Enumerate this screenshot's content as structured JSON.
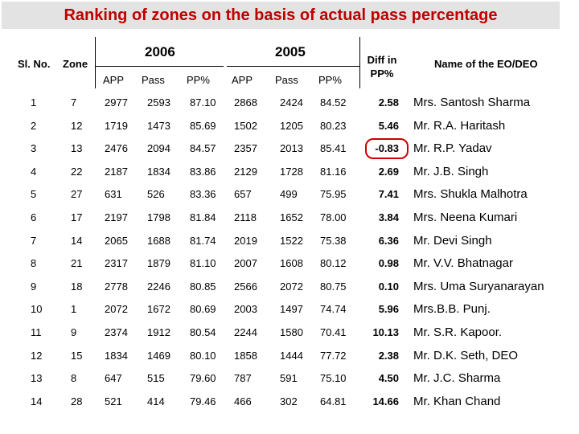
{
  "title": "Ranking of zones on the basis of actual pass percentage",
  "headers": {
    "sl_no": "Sl. No.",
    "zone": "Zone",
    "year_2006": "2006",
    "year_2005": "2005",
    "app": "APP",
    "pass": "Pass",
    "pp": "PP%",
    "diff": "Diff in PP%",
    "name": "Name of the EO/DEO"
  },
  "rows": [
    {
      "sl": "1",
      "zone": "7",
      "app06": "2977",
      "pass06": "2593",
      "pp06": "87.10",
      "app05": "2868",
      "pass05": "2424",
      "pp05": "84.52",
      "diff": "2.58",
      "name": "Mrs. Santosh  Sharma"
    },
    {
      "sl": "2",
      "zone": "12",
      "app06": "1719",
      "pass06": "1473",
      "pp06": "85.69",
      "app05": "1502",
      "pass05": "1205",
      "pp05": "80.23",
      "diff": "5.46",
      "name": "Mr. R.A. Haritash"
    },
    {
      "sl": "3",
      "zone": "13",
      "app06": "2476",
      "pass06": "2094",
      "pp06": "84.57",
      "app05": "2357",
      "pass05": "2013",
      "pp05": "85.41",
      "diff": "-0.83",
      "name": "Mr. R.P. Yadav"
    },
    {
      "sl": "4",
      "zone": "22",
      "app06": "2187",
      "pass06": "1834",
      "pp06": "83.86",
      "app05": "2129",
      "pass05": "1728",
      "pp05": "81.16",
      "diff": "2.69",
      "name": "Mr. J.B. Singh"
    },
    {
      "sl": "5",
      "zone": "27",
      "app06": "631",
      "pass06": "526",
      "pp06": "83.36",
      "app05": "657",
      "pass05": "499",
      "pp05": "75.95",
      "diff": "7.41",
      "name": "Mrs. Shukla Malhotra"
    },
    {
      "sl": "6",
      "zone": "17",
      "app06": "2197",
      "pass06": "1798",
      "pp06": "81.84",
      "app05": "2118",
      "pass05": "1652",
      "pp05": "78.00",
      "diff": "3.84",
      "name": "Mrs. Neena Kumari"
    },
    {
      "sl": "7",
      "zone": "14",
      "app06": "2065",
      "pass06": "1688",
      "pp06": "81.74",
      "app05": "2019",
      "pass05": "1522",
      "pp05": "75.38",
      "diff": "6.36",
      "name": "Mr. Devi Singh"
    },
    {
      "sl": "8",
      "zone": "21",
      "app06": "2317",
      "pass06": "1879",
      "pp06": "81.10",
      "app05": "2007",
      "pass05": "1608",
      "pp05": "80.12",
      "diff": "0.98",
      "name": "Mr. V.V. Bhatnagar"
    },
    {
      "sl": "9",
      "zone": "18",
      "app06": "2778",
      "pass06": "2246",
      "pp06": "80.85",
      "app05": "2566",
      "pass05": "2072",
      "pp05": "80.75",
      "diff": "0.10",
      "name": "Mrs. Uma Suryanarayan"
    },
    {
      "sl": "10",
      "zone": "1",
      "app06": "2072",
      "pass06": "1672",
      "pp06": "80.69",
      "app05": "2003",
      "pass05": "1497",
      "pp05": "74.74",
      "diff": "5.96",
      "name": "Mrs.B.B. Punj."
    },
    {
      "sl": "11",
      "zone": "9",
      "app06": "2374",
      "pass06": "1912",
      "pp06": "80.54",
      "app05": "2244",
      "pass05": "1580",
      "pp05": "70.41",
      "diff": "10.13",
      "name": "Mr. S.R. Kapoor."
    },
    {
      "sl": "12",
      "zone": "15",
      "app06": "1834",
      "pass06": "1469",
      "pp06": "80.10",
      "app05": "1858",
      "pass05": "1444",
      "pp05": "77.72",
      "diff": "2.38",
      "name": "Mr. D.K. Seth, DEO"
    },
    {
      "sl": "13",
      "zone": "8",
      "app06": "647",
      "pass06": "515",
      "pp06": "79.60",
      "app05": "787",
      "pass05": "591",
      "pp05": "75.10",
      "diff": "4.50",
      "name": "Mr. J.C. Sharma"
    },
    {
      "sl": "14",
      "zone": "28",
      "app06": "521",
      "pass06": "414",
      "pp06": "79.46",
      "app05": "466",
      "pass05": "302",
      "pp05": "64.81",
      "diff": "14.66",
      "name": "Mr. Khan Chand"
    }
  ],
  "highlight_row_index": 2,
  "colors": {
    "title": "#c00000",
    "title_bg": "#e3e3e3",
    "highlight": "#d00000"
  }
}
